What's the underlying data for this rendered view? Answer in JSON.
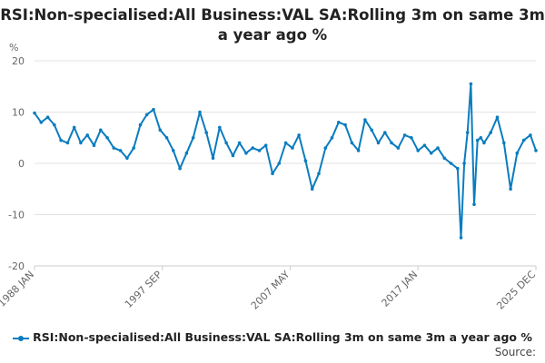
{
  "chart_data": {
    "type": "line",
    "title": "RSI:Non-specialised:All Business:VAL SA:Rolling 3m on same 3m a year ago %",
    "ylabel": "%",
    "xlabel": "",
    "ylim": [
      -20,
      20
    ],
    "yticks": [
      20,
      10,
      0,
      -10,
      -20
    ],
    "xticks": [
      "1988 JAN",
      "1997 SEP",
      "2007 MAY",
      "2017 JAN",
      "2025 DEC"
    ],
    "grid": "horizontal",
    "legend_position": "bottom",
    "series": [
      {
        "name": "RSI:Non-specialised:All Business:VAL SA:Rolling 3m on same 3m a year ago %",
        "color": "#0a7cbf",
        "x": [
          1988.0,
          1988.5,
          1989.0,
          1989.5,
          1990.0,
          1990.5,
          1991.0,
          1991.5,
          1992.0,
          1992.5,
          1993.0,
          1993.5,
          1994.0,
          1994.5,
          1995.0,
          1995.5,
          1996.0,
          1996.5,
          1997.0,
          1997.5,
          1998.0,
          1998.5,
          1999.0,
          1999.5,
          2000.0,
          2000.5,
          2001.0,
          2001.5,
          2002.0,
          2002.5,
          2003.0,
          2003.5,
          2004.0,
          2004.5,
          2005.0,
          2005.5,
          2006.0,
          2006.5,
          2007.0,
          2007.5,
          2008.0,
          2008.5,
          2009.0,
          2009.5,
          2010.0,
          2010.5,
          2011.0,
          2011.5,
          2012.0,
          2012.5,
          2013.0,
          2013.5,
          2014.0,
          2014.5,
          2015.0,
          2015.5,
          2016.0,
          2016.5,
          2017.0,
          2017.5,
          2018.0,
          2018.5,
          2019.0,
          2019.5,
          2020.0,
          2020.25,
          2020.5,
          2020.75,
          2021.0,
          2021.25,
          2021.5,
          2021.75,
          2022.0,
          2022.5,
          2023.0,
          2023.5,
          2024.0,
          2024.5,
          2025.0,
          2025.5,
          2025.92
        ],
        "values": [
          9.8,
          8.0,
          9.0,
          7.5,
          4.5,
          4.0,
          7.0,
          4.0,
          5.5,
          3.5,
          6.5,
          5.0,
          3.0,
          2.5,
          1.0,
          3.0,
          7.5,
          9.5,
          10.5,
          6.5,
          5.0,
          2.5,
          -1.0,
          2.0,
          5.0,
          10.0,
          6.0,
          1.0,
          7.0,
          4.0,
          1.5,
          4.0,
          2.0,
          3.0,
          2.5,
          3.5,
          -2.0,
          0.0,
          4.0,
          3.0,
          5.5,
          0.5,
          -5.0,
          -2.0,
          3.0,
          5.0,
          8.0,
          7.5,
          4.0,
          2.5,
          8.5,
          6.5,
          4.0,
          6.0,
          4.0,
          3.0,
          5.5,
          5.0,
          2.5,
          3.5,
          2.0,
          3.0,
          1.0,
          0.0,
          -1.0,
          -14.5,
          0.0,
          6.0,
          15.5,
          -8.0,
          4.5,
          5.0,
          4.0,
          6.0,
          9.0,
          4.0,
          -5.0,
          2.0,
          4.5,
          5.5,
          2.5
        ]
      }
    ]
  },
  "legend": {
    "label": "RSI:Non-specialised:All Business:VAL SA:Rolling 3m on same 3m a year ago %"
  },
  "source": {
    "label": "Source:"
  }
}
